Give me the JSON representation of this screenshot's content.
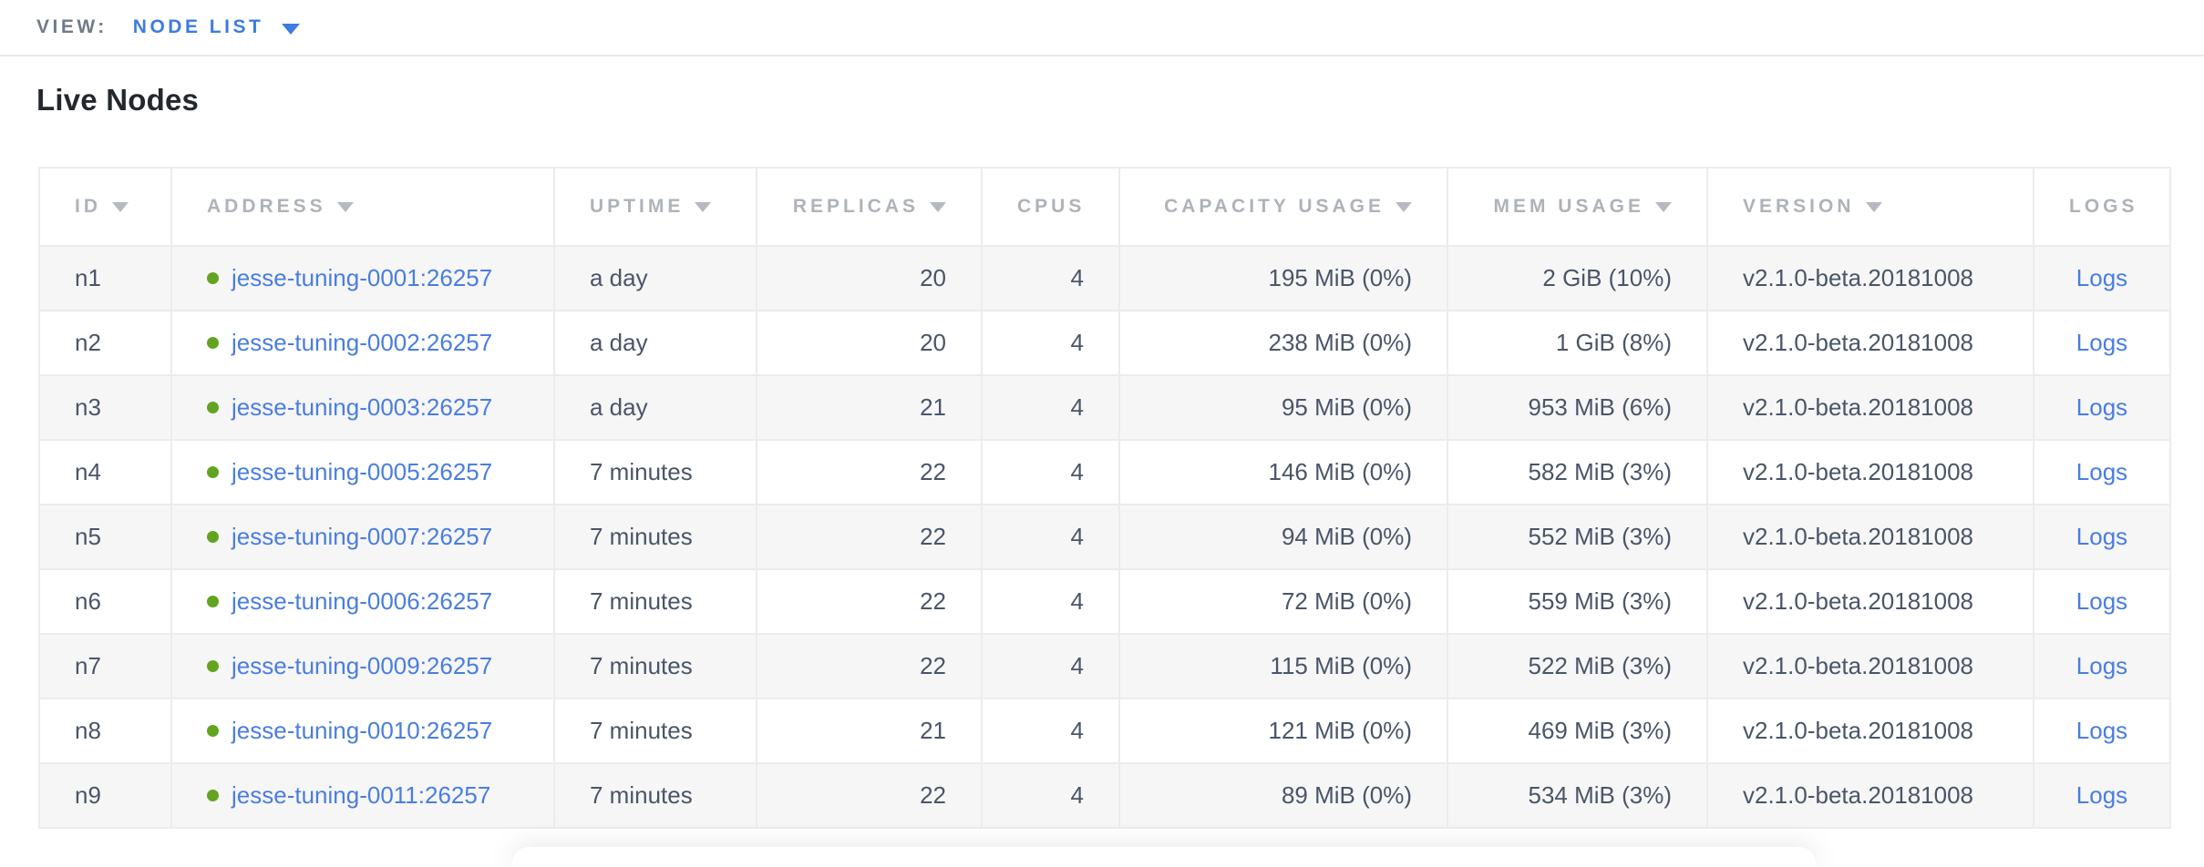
{
  "view_bar": {
    "label": "VIEW:",
    "selected_view": "NODE LIST"
  },
  "page_title": "Live Nodes",
  "table": {
    "columns": [
      {
        "key": "id",
        "label": "ID",
        "sortable": true,
        "align": "left"
      },
      {
        "key": "address",
        "label": "ADDRESS",
        "sortable": true,
        "align": "left"
      },
      {
        "key": "uptime",
        "label": "UPTIME",
        "sortable": true,
        "align": "left"
      },
      {
        "key": "replicas",
        "label": "REPLICAS",
        "sortable": true,
        "align": "right"
      },
      {
        "key": "cpus",
        "label": "CPUS",
        "sortable": false,
        "align": "right"
      },
      {
        "key": "capacity",
        "label": "CAPACITY USAGE",
        "sortable": true,
        "align": "right"
      },
      {
        "key": "mem",
        "label": "MEM USAGE",
        "sortable": true,
        "align": "right"
      },
      {
        "key": "version",
        "label": "VERSION",
        "sortable": true,
        "align": "left"
      },
      {
        "key": "logs",
        "label": "LOGS",
        "sortable": false,
        "align": "center"
      }
    ],
    "rows": [
      {
        "id": "n1",
        "status": "healthy",
        "address": "jesse-tuning-0001:26257",
        "uptime": "a day",
        "replicas": "20",
        "cpus": "4",
        "capacity": "195 MiB (0%)",
        "mem": "2 GiB (10%)",
        "version": "v2.1.0-beta.20181008",
        "logs": "Logs"
      },
      {
        "id": "n2",
        "status": "healthy",
        "address": "jesse-tuning-0002:26257",
        "uptime": "a day",
        "replicas": "20",
        "cpus": "4",
        "capacity": "238 MiB (0%)",
        "mem": "1 GiB (8%)",
        "version": "v2.1.0-beta.20181008",
        "logs": "Logs"
      },
      {
        "id": "n3",
        "status": "healthy",
        "address": "jesse-tuning-0003:26257",
        "uptime": "a day",
        "replicas": "21",
        "cpus": "4",
        "capacity": "95 MiB (0%)",
        "mem": "953 MiB (6%)",
        "version": "v2.1.0-beta.20181008",
        "logs": "Logs"
      },
      {
        "id": "n4",
        "status": "healthy",
        "address": "jesse-tuning-0005:26257",
        "uptime": "7 minutes",
        "replicas": "22",
        "cpus": "4",
        "capacity": "146 MiB (0%)",
        "mem": "582 MiB (3%)",
        "version": "v2.1.0-beta.20181008",
        "logs": "Logs"
      },
      {
        "id": "n5",
        "status": "healthy",
        "address": "jesse-tuning-0007:26257",
        "uptime": "7 minutes",
        "replicas": "22",
        "cpus": "4",
        "capacity": "94 MiB (0%)",
        "mem": "552 MiB (3%)",
        "version": "v2.1.0-beta.20181008",
        "logs": "Logs"
      },
      {
        "id": "n6",
        "status": "healthy",
        "address": "jesse-tuning-0006:26257",
        "uptime": "7 minutes",
        "replicas": "22",
        "cpus": "4",
        "capacity": "72 MiB (0%)",
        "mem": "559 MiB (3%)",
        "version": "v2.1.0-beta.20181008",
        "logs": "Logs"
      },
      {
        "id": "n7",
        "status": "healthy",
        "address": "jesse-tuning-0009:26257",
        "uptime": "7 minutes",
        "replicas": "22",
        "cpus": "4",
        "capacity": "115 MiB (0%)",
        "mem": "522 MiB (3%)",
        "version": "v2.1.0-beta.20181008",
        "logs": "Logs"
      },
      {
        "id": "n8",
        "status": "healthy",
        "address": "jesse-tuning-0010:26257",
        "uptime": "7 minutes",
        "replicas": "21",
        "cpus": "4",
        "capacity": "121 MiB (0%)",
        "mem": "469 MiB (3%)",
        "version": "v2.1.0-beta.20181008",
        "logs": "Logs"
      },
      {
        "id": "n9",
        "status": "healthy",
        "address": "jesse-tuning-0011:26257",
        "uptime": "7 minutes",
        "replicas": "22",
        "cpus": "4",
        "capacity": "89 MiB (0%)",
        "mem": "534 MiB (3%)",
        "version": "v2.1.0-beta.20181008",
        "logs": "Logs"
      }
    ]
  },
  "colors": {
    "link_blue": "#4a7de0",
    "view_accent_blue": "#3d7ce0",
    "healthy_dot_green": "#62a420"
  }
}
